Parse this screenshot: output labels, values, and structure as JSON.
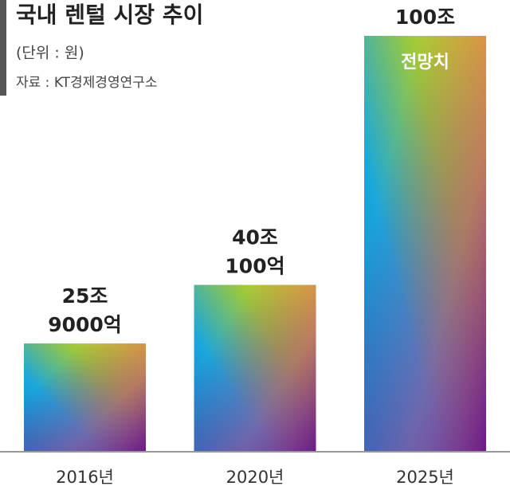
{
  "chart_data": {
    "type": "bar",
    "title": "국내 렌털 시장 추이",
    "subtitle": "(단위 : 원)",
    "source": "자료 : KT경제경영연구소",
    "categories": [
      "2016년",
      "2020년",
      "2025년"
    ],
    "values": [
      25.9,
      40.01,
      100
    ],
    "value_labels": [
      [
        "25조",
        "9000억"
      ],
      [
        "40조",
        "100억"
      ],
      [
        "100조"
      ]
    ],
    "annotation": "전망치",
    "ylim": [
      0,
      100
    ]
  }
}
